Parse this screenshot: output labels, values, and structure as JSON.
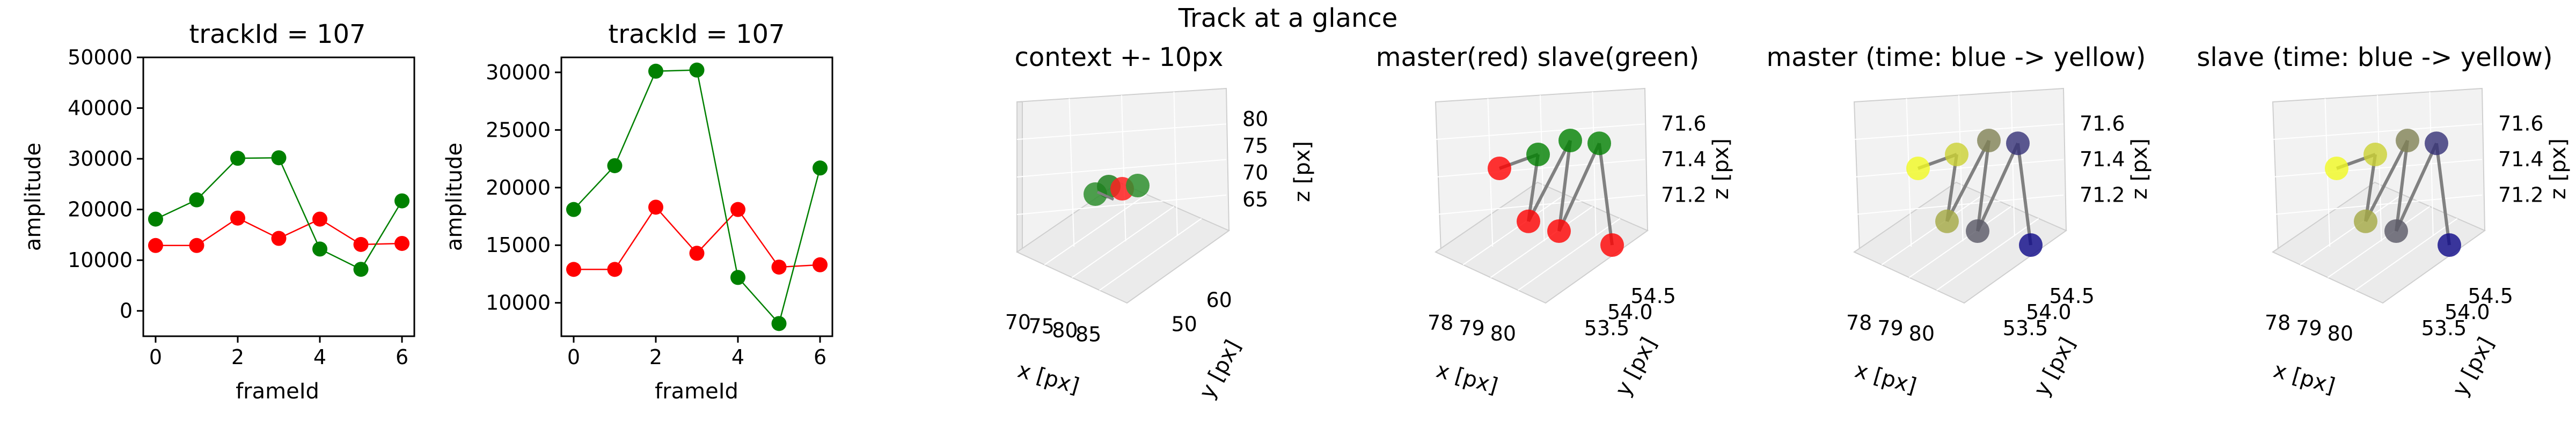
{
  "figure": {
    "suptitle": "Track at a glance"
  },
  "chart_data": [
    {
      "type": "line",
      "title": "trackId = 107",
      "xlabel": "frameId",
      "ylabel": "amplitude",
      "xlim": [
        -0.3,
        6.3
      ],
      "ylim": [
        -5000,
        50000
      ],
      "xticks": [
        "0",
        "2",
        "4",
        "6"
      ],
      "yticks": [
        "0",
        "10000",
        "20000",
        "30000",
        "40000",
        "50000"
      ],
      "x": [
        0,
        1,
        2,
        3,
        4,
        5,
        6
      ],
      "series": [
        {
          "color": "#ff0000",
          "values": [
            12900,
            12900,
            18300,
            14300,
            18100,
            13100,
            13300
          ]
        },
        {
          "color": "#008000",
          "values": [
            18100,
            21900,
            30100,
            30200,
            12200,
            8200,
            21700
          ]
        }
      ]
    },
    {
      "type": "line",
      "title": "trackId = 107",
      "xlabel": "frameId",
      "ylabel": "amplitude",
      "xlim": [
        -0.3,
        6.3
      ],
      "ylim": [
        7100,
        31300
      ],
      "xticks": [
        "0",
        "2",
        "4",
        "6"
      ],
      "yticks": [
        "10000",
        "15000",
        "20000",
        "25000",
        "30000"
      ],
      "x": [
        0,
        1,
        2,
        3,
        4,
        5,
        6
      ],
      "series": [
        {
          "color": "#ff0000",
          "values": [
            12900,
            12900,
            18300,
            14300,
            18100,
            13100,
            13300
          ]
        },
        {
          "color": "#008000",
          "values": [
            18100,
            21900,
            30100,
            30200,
            12200,
            8200,
            21700
          ]
        }
      ]
    },
    {
      "type": "scatter",
      "title": "context +- 10px",
      "xlabel": "x [px]",
      "ylabel": "y [px]",
      "zlabel": "z [px]",
      "xticks": [
        "70",
        "75",
        "80",
        "85"
      ],
      "yticks": [
        "50",
        "60"
      ],
      "zticks": [
        "65",
        "70",
        "75",
        "80"
      ],
      "points": [
        {
          "color": "#2f8f2f",
          "x": 78.2,
          "y": 54.1,
          "z": 71.2
        },
        {
          "color": "#1f7f1f",
          "x": 78.9,
          "y": 54.0,
          "z": 71.4
        },
        {
          "color": "#ff2020",
          "x": 79.6,
          "y": 53.9,
          "z": 71.3
        },
        {
          "color": "#2f8f2f",
          "x": 80.1,
          "y": 54.2,
          "z": 71.5
        }
      ]
    },
    {
      "type": "scatter",
      "title": "master(red) slave(green)",
      "xlabel": "x [px]",
      "ylabel": "y [px]",
      "zlabel": "z [px]",
      "xticks": [
        "78",
        "79",
        "80"
      ],
      "yticks": [
        "53.5",
        "54.0",
        "54.5"
      ],
      "zticks": [
        "71.2",
        "71.4",
        "71.6"
      ],
      "series": [
        {
          "name": "master",
          "color": "#ff0000"
        },
        {
          "name": "slave",
          "color": "#008000"
        }
      ]
    },
    {
      "type": "scatter",
      "title": "master (time: blue -> yellow)",
      "xlabel": "x [px]",
      "ylabel": "y [px]",
      "zlabel": "z [px]",
      "xticks": [
        "78",
        "79",
        "80"
      ],
      "yticks": [
        "53.5",
        "54.0",
        "54.5"
      ],
      "zticks": [
        "71.2",
        "71.4",
        "71.6"
      ],
      "colormap": [
        "#0d0887",
        "#f0f921"
      ]
    },
    {
      "type": "scatter",
      "title": "slave (time: blue -> yellow)",
      "xlabel": "x [px]",
      "ylabel": "y [px]",
      "zlabel": "z [px]",
      "xticks": [
        "78",
        "79",
        "80"
      ],
      "yticks": [
        "53.5",
        "54.0",
        "54.5"
      ],
      "zticks": [
        "71.2",
        "71.4",
        "71.6"
      ],
      "colormap": [
        "#0d0887",
        "#f0f921"
      ]
    }
  ]
}
